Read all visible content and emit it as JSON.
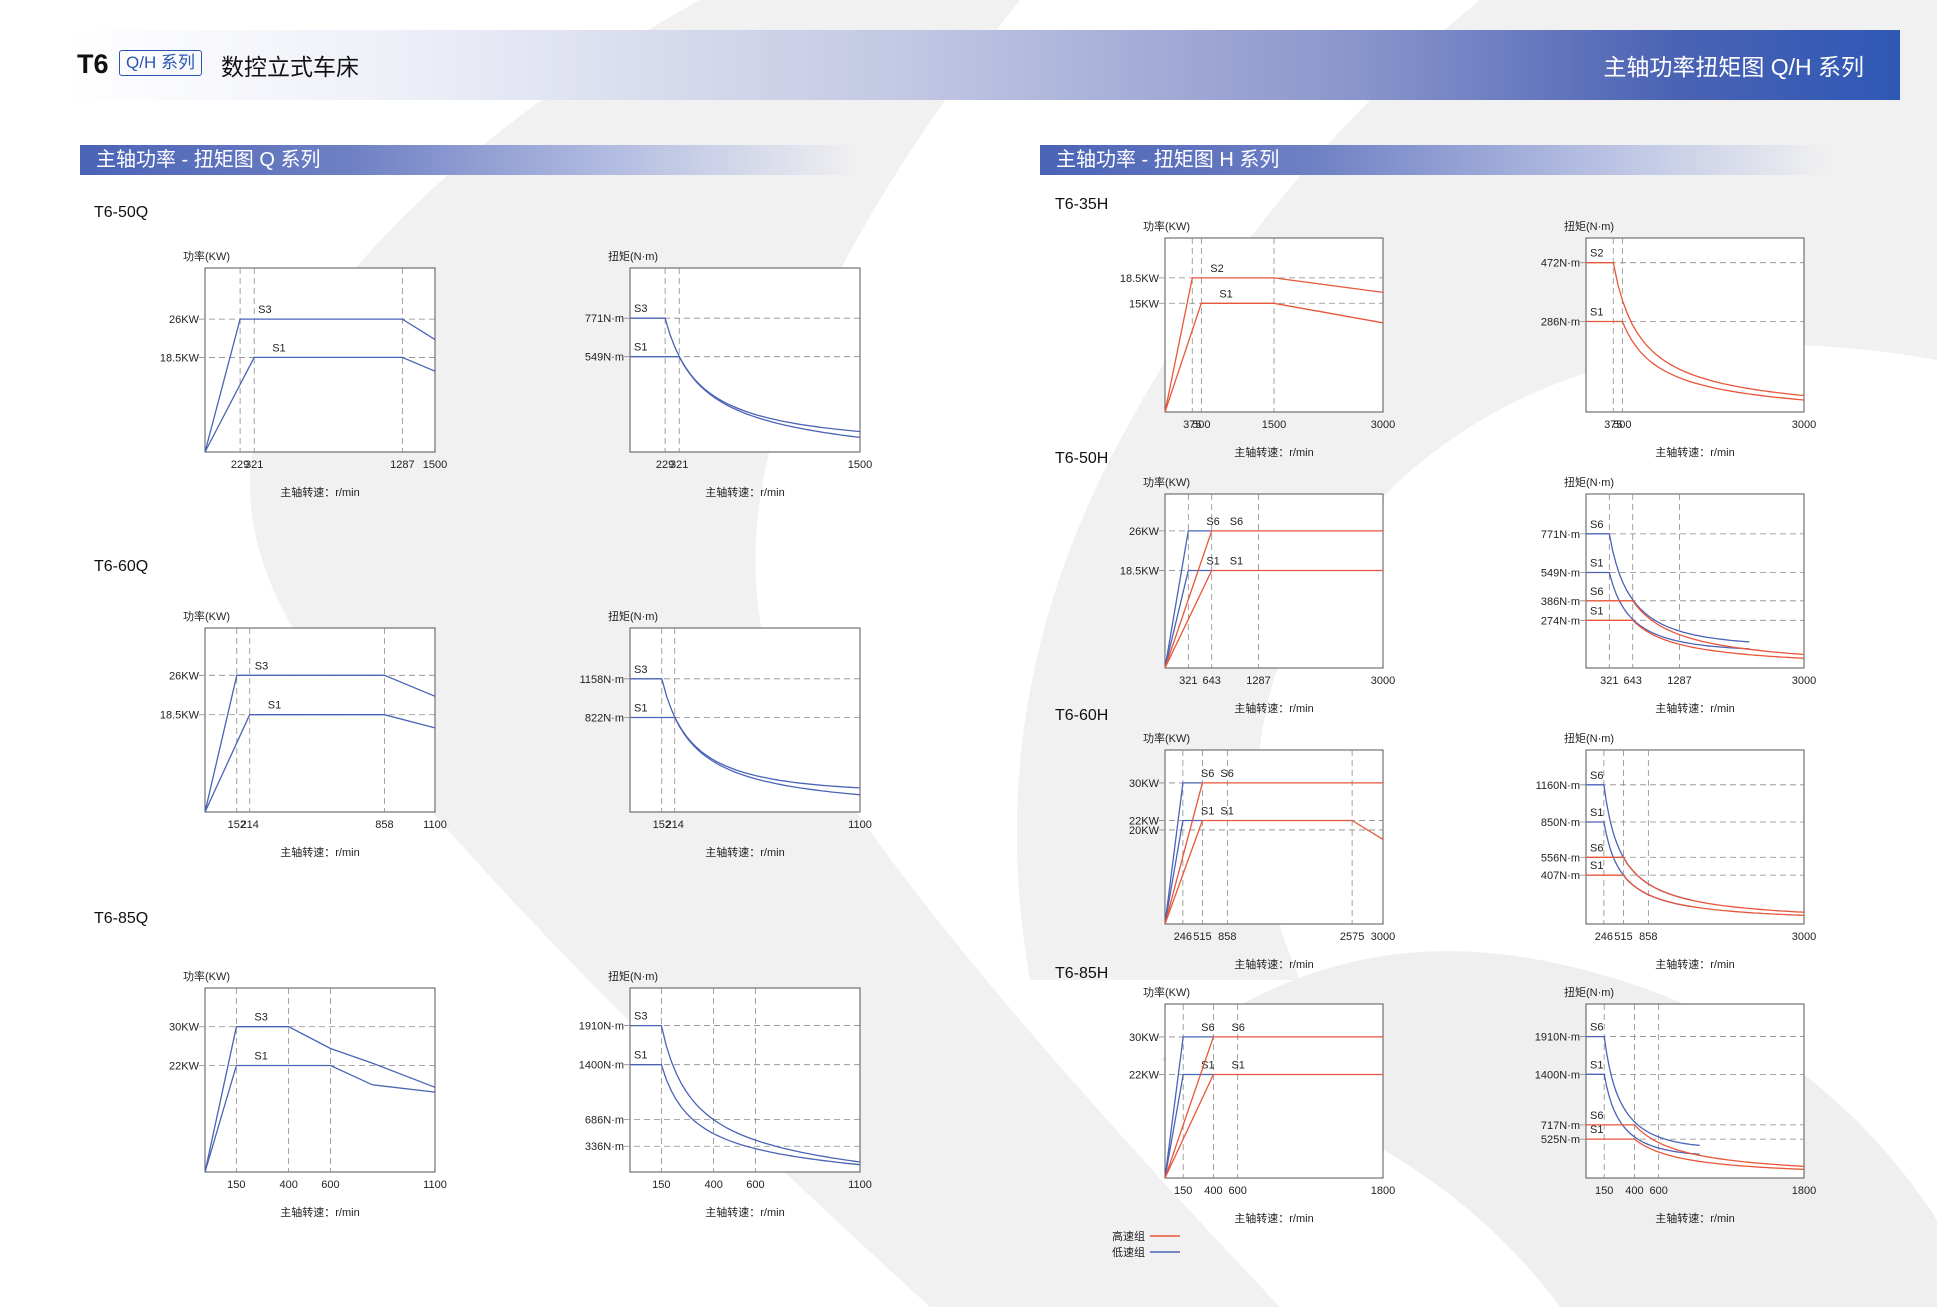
{
  "header": {
    "model": "T6",
    "badge": "Q/H 系列",
    "subtitle": "数控立式车床",
    "right_title": "主轴功率扭矩图 Q/H 系列"
  },
  "sections": {
    "q_title": "主轴功率 - 扭矩图 Q 系列",
    "h_title": "主轴功率 - 扭矩图 H 系列"
  },
  "models": {
    "q50": "T6-50Q",
    "q60": "T6-60Q",
    "q85": "T6-85Q",
    "h35": "T6-35H",
    "h50": "T6-50H",
    "h60": "T6-60H",
    "h85": "T6-85H"
  },
  "colors": {
    "high": "#e8563a",
    "low": "#4a63b6",
    "axis": "#555555",
    "guide": "#8a8a8a"
  },
  "legend": [
    {
      "label": "高速组",
      "color": "#e8563a"
    },
    {
      "label": "低速组",
      "color": "#4a63b6"
    }
  ],
  "chart_data": [
    {
      "id": "q50p",
      "type": "line",
      "ylabel": "功率(KW)",
      "xlabel": "主轴转速：r/min",
      "xlim": [
        0,
        1500
      ],
      "ylim": [
        0,
        36
      ],
      "x_ticks": [
        229,
        321,
        1287,
        1500
      ],
      "y_ticks": [
        {
          "value": 26,
          "label": "26KW"
        },
        {
          "value": 18.5,
          "label": "18.5KW"
        }
      ],
      "series": [
        {
          "name": "S3",
          "group": "low",
          "points": [
            [
              0,
              0
            ],
            [
              229,
              26
            ],
            [
              1287,
              26
            ],
            [
              1500,
              22
            ]
          ]
        },
        {
          "name": "S1",
          "group": "low",
          "points": [
            [
              0,
              0
            ],
            [
              321,
              18.5
            ],
            [
              1287,
              18.5
            ],
            [
              1500,
              15.8
            ]
          ]
        }
      ]
    },
    {
      "id": "q50t",
      "type": "line",
      "ylabel": "扭矩(N·m)",
      "xlabel": "主轴转速：r/min",
      "xlim": [
        0,
        1500
      ],
      "ylim": [
        0,
        1060
      ],
      "x_ticks": [
        229,
        321,
        1500
      ],
      "y_ticks": [
        {
          "value": 771,
          "label": "771N·m"
        },
        {
          "value": 549,
          "label": "549N·m"
        }
      ],
      "series": [
        {
          "name": "S3",
          "group": "low",
          "kind": "torque",
          "knee": 229,
          "value": 771,
          "end_value": 118
        },
        {
          "name": "S1",
          "group": "low",
          "kind": "torque",
          "knee": 321,
          "value": 549,
          "end_value": 84
        }
      ]
    },
    {
      "id": "q60p",
      "type": "line",
      "ylabel": "功率(KW)",
      "xlabel": "主轴转速：r/min",
      "xlim": [
        0,
        1100
      ],
      "ylim": [
        0,
        35
      ],
      "x_ticks": [
        152,
        214,
        858,
        1100
      ],
      "y_ticks": [
        {
          "value": 26,
          "label": "26KW"
        },
        {
          "value": 18.5,
          "label": "18.5KW"
        }
      ],
      "series": [
        {
          "name": "S3",
          "group": "low",
          "points": [
            [
              0,
              0
            ],
            [
              152,
              26
            ],
            [
              858,
              26
            ],
            [
              1100,
              22
            ]
          ]
        },
        {
          "name": "S1",
          "group": "low",
          "points": [
            [
              0,
              0
            ],
            [
              214,
              18.5
            ],
            [
              858,
              18.5
            ],
            [
              1100,
              16
            ]
          ]
        }
      ]
    },
    {
      "id": "q60t",
      "type": "line",
      "ylabel": "扭矩(N·m)",
      "xlabel": "主轴转速：r/min",
      "xlim": [
        0,
        1100
      ],
      "ylim": [
        0,
        1600
      ],
      "x_ticks": [
        152,
        214,
        1100
      ],
      "y_ticks": [
        {
          "value": 1158,
          "label": "1158N·m"
        },
        {
          "value": 822,
          "label": "822N·m"
        }
      ],
      "series": [
        {
          "name": "S3",
          "group": "low",
          "kind": "torque",
          "knee": 152,
          "value": 1158,
          "end_value": 210
        },
        {
          "name": "S1",
          "group": "low",
          "kind": "torque",
          "knee": 214,
          "value": 822,
          "end_value": 150
        }
      ]
    },
    {
      "id": "q85p",
      "type": "line",
      "ylabel": "功率(KW)",
      "xlabel": "主轴转速：r/min",
      "xlim": [
        0,
        1100
      ],
      "ylim": [
        0,
        38
      ],
      "x_ticks": [
        150,
        400,
        600,
        1100
      ],
      "y_ticks": [
        {
          "value": 30,
          "label": "30KW"
        },
        {
          "value": 22,
          "label": "22KW"
        }
      ],
      "series": [
        {
          "name": "S3",
          "group": "low",
          "points": [
            [
              0,
              0
            ],
            [
              150,
              30
            ],
            [
              400,
              30
            ],
            [
              600,
              25.5
            ],
            [
              800,
              22.5
            ],
            [
              1100,
              17.5
            ]
          ]
        },
        {
          "name": "S1",
          "group": "low",
          "points": [
            [
              0,
              0
            ],
            [
              150,
              22
            ],
            [
              600,
              22
            ],
            [
              800,
              18
            ],
            [
              1100,
              16.5
            ]
          ]
        }
      ]
    },
    {
      "id": "q85t",
      "type": "line",
      "ylabel": "扭矩(N·m)",
      "xlabel": "主轴转速：r/min",
      "xlim": [
        0,
        1100
      ],
      "ylim": [
        0,
        2400
      ],
      "x_ticks": [
        150,
        400,
        600,
        1100
      ],
      "y_ticks": [
        {
          "value": 1910,
          "label": "1910N·m"
        },
        {
          "value": 1400,
          "label": "1400N·m"
        },
        {
          "value": 686,
          "label": "686N·m"
        },
        {
          "value": 336,
          "label": "336N·m"
        }
      ],
      "series": [
        {
          "name": "S3",
          "group": "low",
          "kind": "torque",
          "knee": 150,
          "value": 1910,
          "end_value": 130
        },
        {
          "name": "S1",
          "group": "low",
          "kind": "torque",
          "knee": 150,
          "value": 1400,
          "end_value": 95
        }
      ]
    },
    {
      "id": "h35p",
      "type": "line",
      "ylabel": "功率(KW)",
      "xlabel": "主轴转速：r/min",
      "xlim": [
        0,
        3000
      ],
      "ylim": [
        0,
        24
      ],
      "x_ticks": [
        375,
        500,
        1500,
        3000
      ],
      "y_ticks": [
        {
          "value": 18.5,
          "label": "18.5KW"
        },
        {
          "value": 15,
          "label": "15KW"
        }
      ],
      "series": [
        {
          "name": "S2",
          "group": "high",
          "points": [
            [
              0,
              0
            ],
            [
              375,
              18.5
            ],
            [
              1500,
              18.5
            ],
            [
              3000,
              16.5
            ]
          ]
        },
        {
          "name": "S1",
          "group": "high",
          "points": [
            [
              0,
              0
            ],
            [
              500,
              15
            ],
            [
              1500,
              15
            ],
            [
              3000,
              12.3
            ]
          ]
        }
      ]
    },
    {
      "id": "h35t",
      "type": "line",
      "ylabel": "扭矩(N·m)",
      "xlabel": "主轴转速：r/min",
      "xlim": [
        0,
        3000
      ],
      "ylim": [
        0,
        550
      ],
      "x_ticks": [
        375,
        500,
        3000
      ],
      "y_ticks": [
        {
          "value": 472,
          "label": "472N·m"
        },
        {
          "value": 286,
          "label": "286N·m"
        }
      ],
      "series": [
        {
          "name": "S2",
          "group": "high",
          "kind": "torque",
          "knee": 375,
          "value": 472,
          "end_value": 52
        },
        {
          "name": "S1",
          "group": "high",
          "kind": "torque",
          "knee": 500,
          "value": 286,
          "end_value": 38
        }
      ]
    },
    {
      "id": "h50p",
      "type": "line",
      "ylabel": "功率(KW)",
      "xlabel": "主轴转速：r/min",
      "xlim": [
        0,
        3000
      ],
      "ylim": [
        0,
        33
      ],
      "x_ticks": [
        321,
        643,
        1287,
        3000
      ],
      "y_ticks": [
        {
          "value": 26,
          "label": "26KW"
        },
        {
          "value": 18.5,
          "label": "18.5KW"
        }
      ],
      "series": [
        {
          "name": "S6",
          "group": "low",
          "points": [
            [
              0,
              0
            ],
            [
              321,
              26
            ],
            [
              643,
              26
            ]
          ]
        },
        {
          "name": "S1",
          "group": "low",
          "points": [
            [
              0,
              0
            ],
            [
              321,
              18.5
            ],
            [
              643,
              18.5
            ]
          ]
        },
        {
          "name": "S6",
          "group": "high",
          "points": [
            [
              0,
              0
            ],
            [
              643,
              26
            ],
            [
              3000,
              26
            ]
          ]
        },
        {
          "name": "S1",
          "group": "high",
          "points": [
            [
              0,
              0
            ],
            [
              643,
              18.5
            ],
            [
              3000,
              18.5
            ]
          ]
        }
      ]
    },
    {
      "id": "h50t",
      "type": "line",
      "ylabel": "扭矩(N·m)",
      "xlabel": "主轴转速：r/min",
      "xlim": [
        0,
        3000
      ],
      "ylim": [
        0,
        1000
      ],
      "x_ticks": [
        321,
        643,
        1287,
        3000
      ],
      "y_ticks": [
        {
          "value": 771,
          "label": "771N·m"
        },
        {
          "value": 549,
          "label": "549N·m"
        },
        {
          "value": 386,
          "label": "386N·m"
        },
        {
          "value": 274,
          "label": "274N·m"
        }
      ],
      "series": [
        {
          "name": "S6",
          "group": "low",
          "kind": "torque",
          "knee": 321,
          "value": 771,
          "end_value": 150,
          "end_x": 2250
        },
        {
          "name": "S1",
          "group": "low",
          "kind": "torque",
          "knee": 321,
          "value": 549,
          "end_value": 110,
          "end_x": 2250
        },
        {
          "name": "S6",
          "group": "high",
          "kind": "torque",
          "knee": 643,
          "value": 386,
          "end_value": 78
        },
        {
          "name": "S1",
          "group": "high",
          "kind": "torque",
          "knee": 643,
          "value": 274,
          "end_value": 56
        }
      ]
    },
    {
      "id": "h60p",
      "type": "line",
      "ylabel": "功率(KW)",
      "xlabel": "主轴转速：r/min",
      "xlim": [
        0,
        3000
      ],
      "ylim": [
        0,
        37
      ],
      "x_ticks": [
        246,
        515,
        858,
        2575,
        3000
      ],
      "y_ticks": [
        {
          "value": 30,
          "label": "30KW"
        },
        {
          "value": 22,
          "label": "22KW"
        },
        {
          "value": 20,
          "label": "20KW"
        }
      ],
      "series": [
        {
          "name": "S6",
          "group": "low",
          "points": [
            [
              0,
              0
            ],
            [
              246,
              30
            ],
            [
              515,
              30
            ]
          ]
        },
        {
          "name": "S1",
          "group": "low",
          "points": [
            [
              0,
              0
            ],
            [
              246,
              22
            ],
            [
              515,
              22
            ]
          ]
        },
        {
          "name": "S6",
          "group": "high",
          "points": [
            [
              0,
              0
            ],
            [
              515,
              30
            ],
            [
              3000,
              30
            ]
          ]
        },
        {
          "name": "S1",
          "group": "high",
          "points": [
            [
              0,
              0
            ],
            [
              515,
              22
            ],
            [
              2575,
              22
            ],
            [
              3000,
              18
            ]
          ]
        }
      ]
    },
    {
      "id": "h60t",
      "type": "line",
      "ylabel": "扭矩(N·m)",
      "xlabel": "主轴转速：r/min",
      "xlim": [
        0,
        3000
      ],
      "ylim": [
        0,
        1450
      ],
      "x_ticks": [
        246,
        515,
        858,
        3000
      ],
      "y_ticks": [
        {
          "value": 1160,
          "label": "1160N·m"
        },
        {
          "value": 850,
          "label": "850N·m"
        },
        {
          "value": 556,
          "label": "556N·m"
        },
        {
          "value": 407,
          "label": "407N·m"
        }
      ],
      "series": [
        {
          "name": "S6",
          "group": "low",
          "kind": "torque",
          "knee": 246,
          "value": 1160,
          "end_value": 200,
          "end_x": 1450
        },
        {
          "name": "S1",
          "group": "low",
          "kind": "torque",
          "knee": 246,
          "value": 850,
          "end_value": 145,
          "end_x": 1450
        },
        {
          "name": "S6",
          "group": "high",
          "kind": "torque",
          "knee": 515,
          "value": 556,
          "end_value": 98
        },
        {
          "name": "S1",
          "group": "high",
          "kind": "torque",
          "knee": 515,
          "value": 407,
          "end_value": 72
        }
      ]
    },
    {
      "id": "h85p",
      "type": "line",
      "ylabel": "功率(KW)",
      "xlabel": "主轴转速：r/min",
      "xlim": [
        0,
        1800
      ],
      "ylim": [
        0,
        37
      ],
      "x_ticks": [
        150,
        400,
        600,
        1800
      ],
      "y_ticks": [
        {
          "value": 30,
          "label": "30KW"
        },
        {
          "value": 22,
          "label": "22KW"
        }
      ],
      "series": [
        {
          "name": "S6",
          "group": "low",
          "points": [
            [
              0,
              0
            ],
            [
              150,
              30
            ],
            [
              400,
              30
            ]
          ]
        },
        {
          "name": "S1",
          "group": "low",
          "points": [
            [
              0,
              0
            ],
            [
              150,
              22
            ],
            [
              400,
              22
            ]
          ]
        },
        {
          "name": "S6",
          "group": "high",
          "points": [
            [
              0,
              0
            ],
            [
              400,
              30
            ],
            [
              1800,
              30
            ]
          ]
        },
        {
          "name": "S1",
          "group": "high",
          "points": [
            [
              0,
              0
            ],
            [
              400,
              22
            ],
            [
              1800,
              22
            ]
          ]
        }
      ]
    },
    {
      "id": "h85t",
      "type": "line",
      "ylabel": "扭矩(N·m)",
      "xlabel": "主轴转速：r/min",
      "xlim": [
        0,
        1800
      ],
      "ylim": [
        0,
        2350
      ],
      "x_ticks": [
        150,
        400,
        600,
        1800
      ],
      "y_ticks": [
        {
          "value": 1910,
          "label": "1910N·m"
        },
        {
          "value": 1400,
          "label": "1400N·m"
        },
        {
          "value": 717,
          "label": "717N·m"
        },
        {
          "value": 525,
          "label": "525N·m"
        }
      ],
      "series": [
        {
          "name": "S6",
          "group": "low",
          "kind": "torque",
          "knee": 150,
          "value": 1910,
          "end_value": 440,
          "end_x": 940
        },
        {
          "name": "S1",
          "group": "low",
          "kind": "torque",
          "knee": 150,
          "value": 1400,
          "end_value": 320,
          "end_x": 940
        },
        {
          "name": "S6",
          "group": "high",
          "kind": "torque",
          "knee": 400,
          "value": 717,
          "end_value": 158
        },
        {
          "name": "S1",
          "group": "high",
          "kind": "torque",
          "knee": 400,
          "value": 525,
          "end_value": 117
        }
      ]
    }
  ]
}
